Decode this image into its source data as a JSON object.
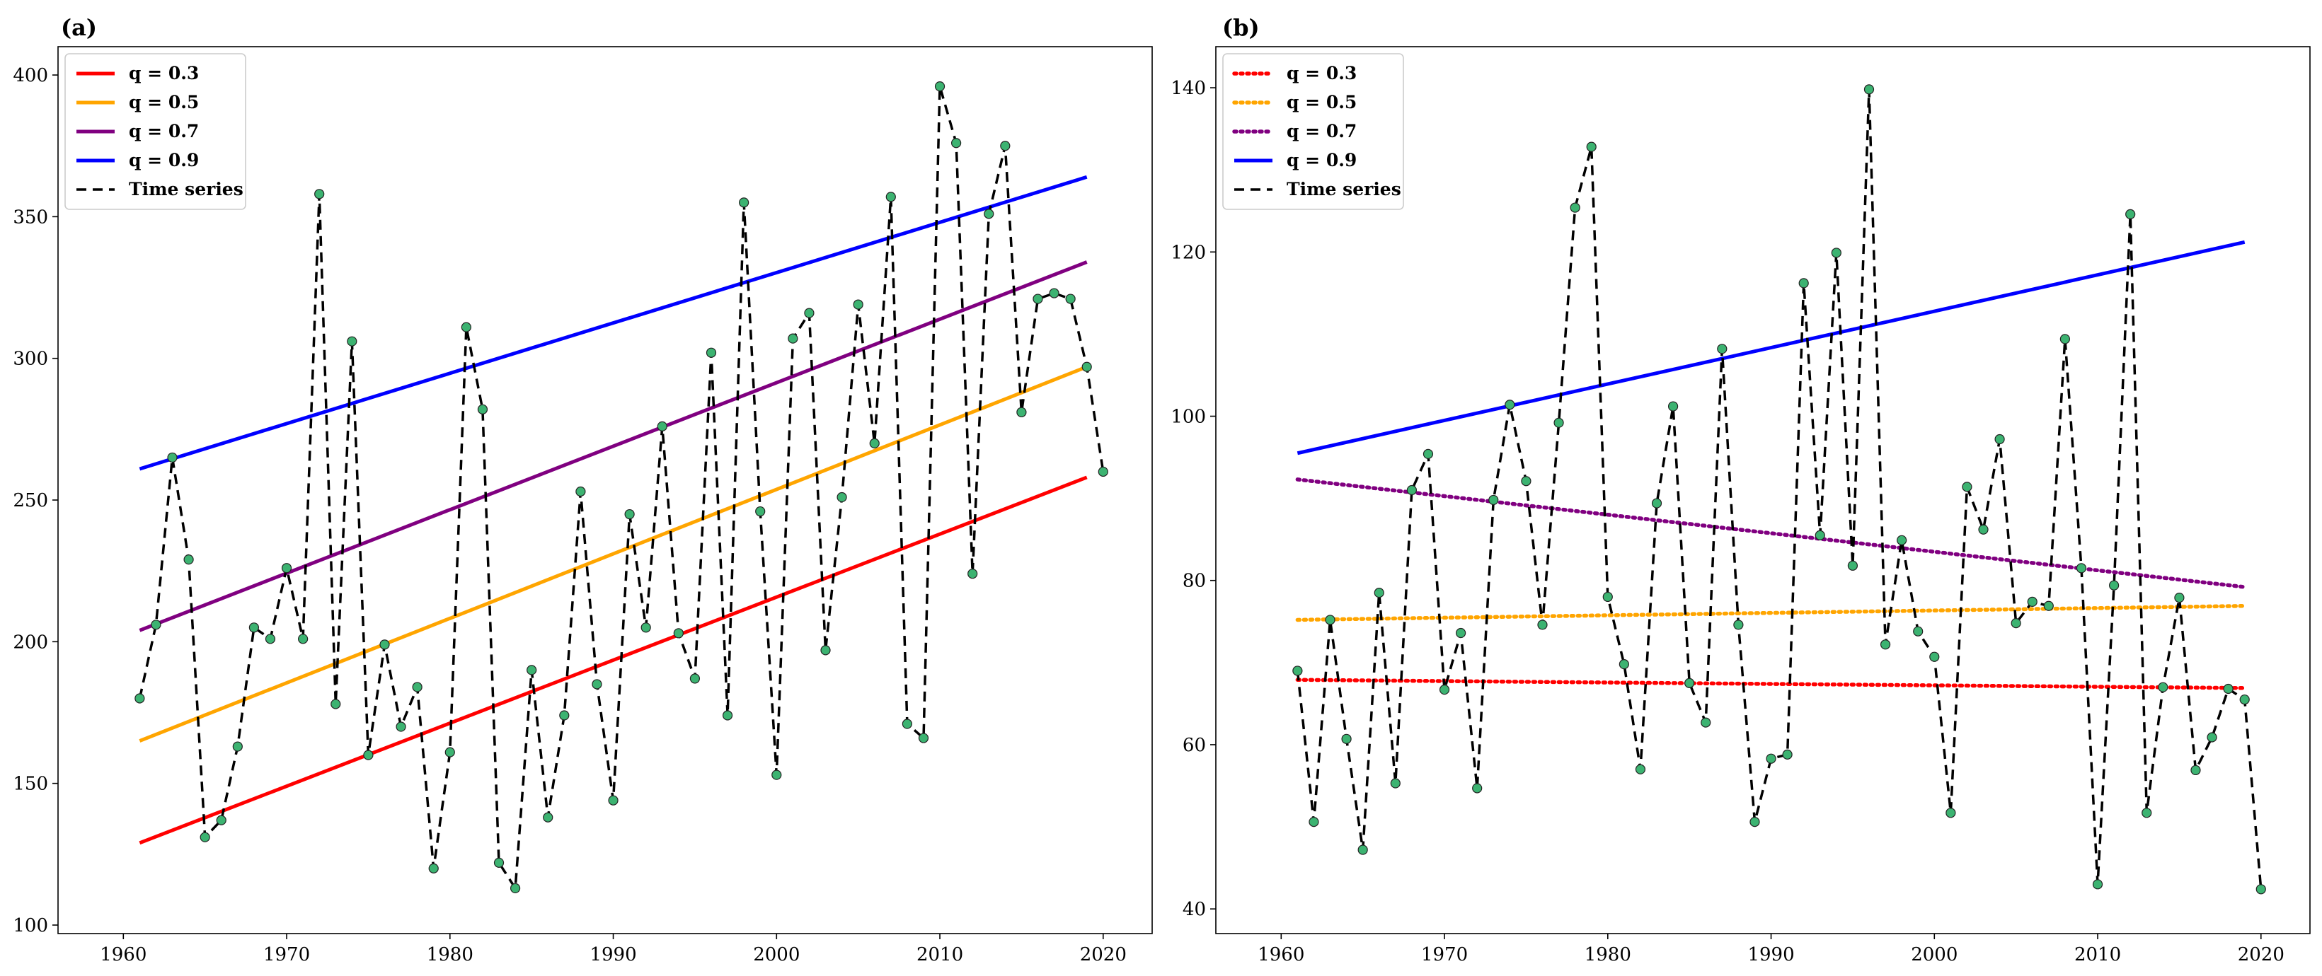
{
  "chart_data": [
    {
      "panel_label": "(a)",
      "type": "line",
      "xlim": [
        1956,
        2023
      ],
      "ylim": [
        97,
        410
      ],
      "xticks": [
        1960,
        1970,
        1980,
        1990,
        2000,
        2010,
        2020
      ],
      "yticks": [
        100,
        150,
        200,
        250,
        300,
        350,
        400
      ],
      "time_series": {
        "name": "Time series",
        "x": [
          1961,
          1962,
          1963,
          1964,
          1965,
          1966,
          1967,
          1968,
          1969,
          1970,
          1971,
          1972,
          1973,
          1974,
          1975,
          1976,
          1977,
          1978,
          1979,
          1980,
          1981,
          1982,
          1983,
          1984,
          1985,
          1986,
          1987,
          1988,
          1989,
          1990,
          1991,
          1992,
          1993,
          1994,
          1995,
          1996,
          1997,
          1998,
          1999,
          2000,
          2001,
          2002,
          2003,
          2004,
          2005,
          2006,
          2007,
          2008,
          2009,
          2010,
          2011,
          2012,
          2013,
          2014,
          2015,
          2016,
          2017,
          2018,
          2019,
          2020
        ],
        "y": [
          180,
          206,
          265,
          229,
          131,
          137,
          163,
          205,
          201,
          226,
          201,
          358,
          178,
          306,
          160,
          199,
          170,
          184,
          120,
          161,
          311,
          282,
          122,
          113,
          190,
          138,
          174,
          253,
          185,
          144,
          245,
          205,
          276,
          203,
          187,
          302,
          174,
          355,
          246,
          153,
          307,
          316,
          197,
          251,
          319,
          270,
          357,
          171,
          166,
          396,
          376,
          224,
          351,
          375,
          281,
          321,
          323,
          321,
          297,
          260
        ]
      },
      "series": [
        {
          "name": "q = 0.3",
          "color": "#ff0000",
          "style": "solid",
          "x": [
            1961,
            2019
          ],
          "y": [
            129,
            258
          ]
        },
        {
          "name": "q = 0.5",
          "color": "#ffa500",
          "style": "solid",
          "x": [
            1961,
            2019
          ],
          "y": [
            165,
            297
          ]
        },
        {
          "name": "q = 0.7",
          "color": "#800080",
          "style": "solid",
          "x": [
            1961,
            2019
          ],
          "y": [
            204,
            334
          ]
        },
        {
          "name": "q = 0.9",
          "color": "#0000ff",
          "style": "solid",
          "x": [
            1961,
            2019
          ],
          "y": [
            261,
            364
          ]
        }
      ],
      "legend_entries": [
        "q = 0.3",
        "q = 0.5",
        "q = 0.7",
        "q = 0.9",
        "Time series"
      ],
      "legend_location": "top-left"
    },
    {
      "panel_label": "(b)",
      "type": "line",
      "xlim": [
        1956,
        2023
      ],
      "ylim": [
        37,
        145
      ],
      "xticks": [
        1960,
        1970,
        1980,
        1990,
        2000,
        2010,
        2020
      ],
      "yticks": [
        40,
        60,
        80,
        100,
        120,
        140
      ],
      "time_series": {
        "name": "Time series",
        "x": [
          1961,
          1962,
          1963,
          1964,
          1965,
          1966,
          1967,
          1968,
          1969,
          1970,
          1971,
          1972,
          1973,
          1974,
          1975,
          1976,
          1977,
          1978,
          1979,
          1980,
          1981,
          1982,
          1983,
          1984,
          1985,
          1986,
          1987,
          1988,
          1989,
          1990,
          1991,
          1992,
          1993,
          1994,
          1995,
          1996,
          1997,
          1998,
          1999,
          2000,
          2001,
          2002,
          2003,
          2004,
          2005,
          2006,
          2007,
          2008,
          2009,
          2010,
          2011,
          2012,
          2013,
          2014,
          2015,
          2016,
          2017,
          2018,
          2019,
          2020
        ],
        "y": [
          69,
          50.6,
          75.2,
          60.7,
          47.2,
          78.5,
          55.3,
          91.0,
          95.4,
          66.7,
          73.6,
          54.7,
          89.8,
          101.4,
          92.1,
          74.6,
          99.2,
          125.4,
          132.8,
          78.0,
          69.8,
          57.0,
          89.4,
          101.2,
          67.5,
          62.7,
          108.2,
          74.6,
          50.6,
          58.3,
          58.8,
          116.2,
          85.5,
          119.9,
          81.8,
          139.8,
          72.2,
          84.9,
          73.8,
          70.7,
          51.7,
          91.4,
          86.2,
          97.2,
          74.8,
          77.4,
          76.9,
          109.4,
          81.5,
          43.0,
          79.4,
          124.6,
          51.7,
          67.0,
          77.9,
          56.9,
          60.9,
          66.8,
          65.5,
          42.4
        ]
      },
      "series": [
        {
          "name": "q = 0.3",
          "color": "#ff0000",
          "style": "dotted",
          "x": [
            1961,
            2019
          ],
          "y": [
            67.9,
            66.9
          ]
        },
        {
          "name": "q = 0.5",
          "color": "#ffa500",
          "style": "dotted",
          "x": [
            1961,
            2019
          ],
          "y": [
            75.2,
            76.9
          ]
        },
        {
          "name": "q = 0.7",
          "color": "#800080",
          "style": "dotted",
          "x": [
            1961,
            2019
          ],
          "y": [
            92.3,
            79.2
          ]
        },
        {
          "name": "q = 0.9",
          "color": "#0000ff",
          "style": "solid",
          "x": [
            1961,
            2019
          ],
          "y": [
            95.5,
            121.2
          ]
        }
      ],
      "legend_entries": [
        "q = 0.3",
        "q = 0.5",
        "q = 0.7",
        "q = 0.9",
        "Time series"
      ],
      "legend_location": "top-left"
    }
  ],
  "colors": {
    "marker_fill": "#3cb371",
    "time_series_line": "#000000"
  }
}
